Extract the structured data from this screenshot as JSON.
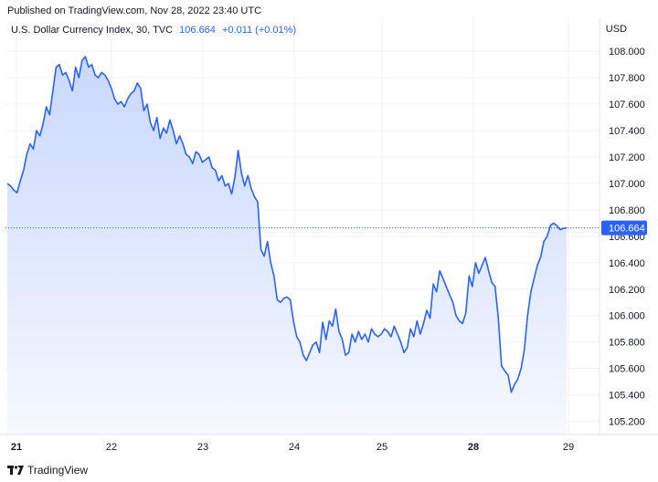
{
  "header": {
    "published": "Published on TradingView.com, Nov 28, 2022 23:40 UTC"
  },
  "legend": {
    "symbol": "U.S. Dollar Currency Index, 30, TVC",
    "price": "106.664",
    "change": "+0.011 (+0.01%)"
  },
  "currency": "USD",
  "footer": {
    "brand": "TradingView",
    "logo_icon": "tradingview-logo-icon"
  },
  "colors": {
    "line": "#2962ff",
    "area_top": "#c9d8ff",
    "area_bottom": "#f5f8ff",
    "grid": "#f0f3fa",
    "last_price_badge": "#2962ff"
  },
  "chart_data": {
    "type": "area",
    "title": "U.S. Dollar Currency Index, 30, TVC",
    "xlabel": "",
    "ylabel": "USD",
    "ylim": [
      105.1,
      108.25
    ],
    "grid": true,
    "last_price": 106.664,
    "last_price_label": "106.664",
    "x_ticks": [
      {
        "label": "21",
        "bold": true,
        "x": 0.0
      },
      {
        "label": "22",
        "bold": false,
        "x": 48
      },
      {
        "label": "23",
        "bold": false,
        "x": 96
      },
      {
        "label": "24",
        "bold": false,
        "x": 144
      },
      {
        "label": "25",
        "bold": false,
        "x": 192
      },
      {
        "label": "28",
        "bold": true,
        "x": 240
      },
      {
        "label": "29",
        "bold": false,
        "x": 288
      }
    ],
    "y_ticks": [
      105.2,
      105.4,
      105.6,
      105.8,
      106.0,
      106.2,
      106.4,
      106.6,
      106.8,
      107.0,
      107.2,
      107.4,
      107.6,
      107.8,
      108.0
    ],
    "y_tick_labels": [
      "105.200",
      "105.400",
      "105.600",
      "105.800",
      "106.000",
      "106.200",
      "106.400",
      "106.600",
      "106.800",
      "107.000",
      "107.200",
      "107.400",
      "107.600",
      "107.800",
      "108.000"
    ],
    "series": [
      {
        "values": [
          107.0,
          106.98,
          106.95,
          106.93,
          107.02,
          107.1,
          107.22,
          107.3,
          107.26,
          107.4,
          107.36,
          107.45,
          107.58,
          107.52,
          107.7,
          107.88,
          107.9,
          107.82,
          107.84,
          107.78,
          107.7,
          107.88,
          107.8,
          107.93,
          107.96,
          107.88,
          107.9,
          107.82,
          107.8,
          107.84,
          107.82,
          107.78,
          107.72,
          107.64,
          107.6,
          107.62,
          107.58,
          107.64,
          107.68,
          107.7,
          107.76,
          107.72,
          107.55,
          107.6,
          107.46,
          107.4,
          107.5,
          107.34,
          107.42,
          107.38,
          107.48,
          107.4,
          107.3,
          107.36,
          107.3,
          107.22,
          107.2,
          107.15,
          107.24,
          107.22,
          107.16,
          107.18,
          107.2,
          107.12,
          107.1,
          107.02,
          107.06,
          106.98,
          107.0,
          106.92,
          107.05,
          107.25,
          107.08,
          106.98,
          107.06,
          106.96,
          106.9,
          106.86,
          106.5,
          106.45,
          106.56,
          106.4,
          106.3,
          106.12,
          106.1,
          106.13,
          106.14,
          106.12,
          105.96,
          105.84,
          105.8,
          105.7,
          105.66,
          105.72,
          105.78,
          105.8,
          105.72,
          105.95,
          105.82,
          105.96,
          105.92,
          106.05,
          105.88,
          105.82,
          105.7,
          105.72,
          105.86,
          105.8,
          105.88,
          105.82,
          105.86,
          105.8,
          105.9,
          105.86,
          105.84,
          105.86,
          105.9,
          105.88,
          105.84,
          105.92,
          105.86,
          105.8,
          105.72,
          105.76,
          105.9,
          105.84,
          105.96,
          105.86,
          105.94,
          106.04,
          105.98,
          106.24,
          106.18,
          106.34,
          106.28,
          106.22,
          106.16,
          106.1,
          106.0,
          105.96,
          105.94,
          106.02,
          106.3,
          106.22,
          106.4,
          106.32,
          106.38,
          106.44,
          106.34,
          106.25,
          106.22,
          105.98,
          105.62,
          105.58,
          105.55,
          105.42,
          105.48,
          105.52,
          105.6,
          105.74,
          106.0,
          106.18,
          106.28,
          106.38,
          106.44,
          106.56,
          106.6,
          106.68,
          106.7,
          106.68,
          106.65,
          106.66,
          106.664
        ]
      }
    ]
  }
}
